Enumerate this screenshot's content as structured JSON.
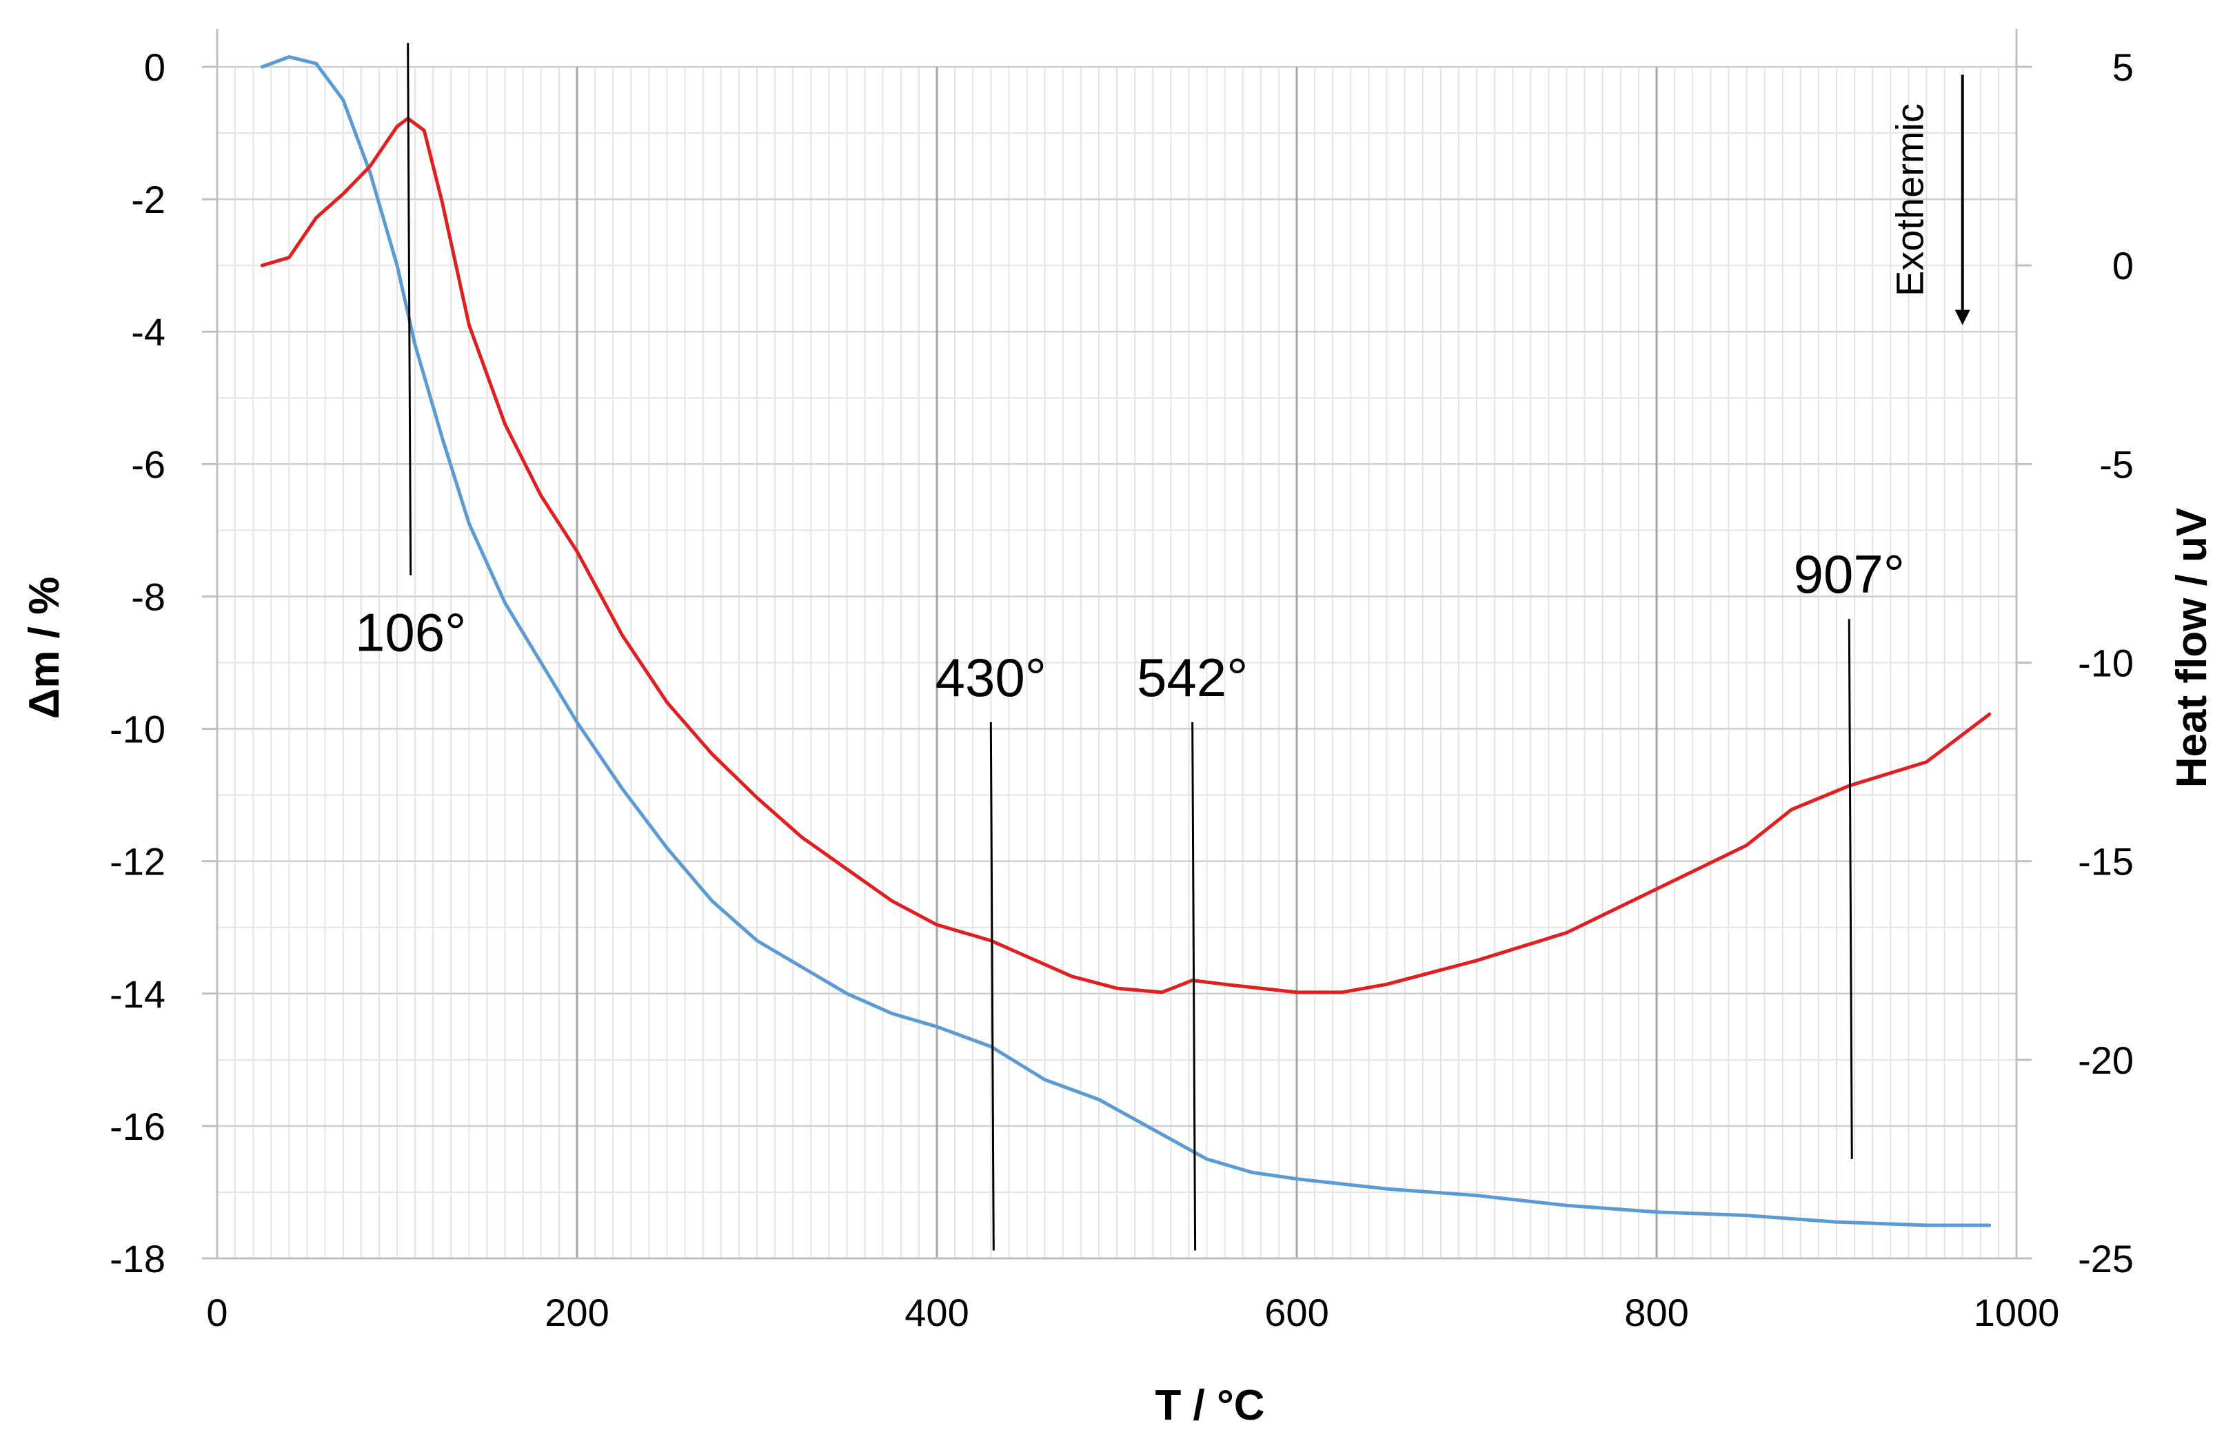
{
  "chart_data": {
    "type": "line",
    "xlabel": "T / °C",
    "ylabel_left": "Δm / %",
    "ylabel_right": "Heat flow / uV",
    "xlim": [
      0,
      1000
    ],
    "ylim_left": [
      -18,
      0
    ],
    "ylim_right": [
      -25,
      5
    ],
    "x_ticks": [
      0,
      200,
      400,
      600,
      800,
      1000
    ],
    "y_left_ticks": [
      0,
      -2,
      -4,
      -6,
      -8,
      -10,
      -12,
      -14,
      -16,
      -18
    ],
    "y_right_ticks": [
      5,
      0,
      -5,
      -10,
      -15,
      -20,
      -25
    ],
    "grid": true,
    "colors": {
      "mass": "#5b9bd5",
      "heat": "#e02020",
      "grid_major": "#a6a6a6",
      "grid_minor": "#e4e4e4",
      "annotation": "#000000"
    },
    "series": [
      {
        "axis": "left",
        "color": "#5b9bd5",
        "x": [
          25,
          40,
          55,
          70,
          85,
          100,
          110,
          125,
          140,
          160,
          180,
          200,
          225,
          250,
          275,
          300,
          325,
          350,
          375,
          400,
          430,
          460,
          490,
          510,
          530,
          550,
          575,
          600,
          650,
          700,
          750,
          800,
          850,
          900,
          950,
          985
        ],
        "y": [
          0,
          0.15,
          0.05,
          -0.5,
          -1.6,
          -3.0,
          -4.2,
          -5.6,
          -6.9,
          -8.1,
          -9.0,
          -9.9,
          -10.9,
          -11.8,
          -12.6,
          -13.2,
          -13.6,
          -14.0,
          -14.3,
          -14.5,
          -14.8,
          -15.3,
          -15.6,
          -15.9,
          -16.2,
          -16.5,
          -16.7,
          -16.8,
          -16.95,
          -17.05,
          -17.2,
          -17.3,
          -17.35,
          -17.45,
          -17.5,
          -17.5
        ]
      },
      {
        "axis": "right",
        "color": "#e02020",
        "x": [
          25,
          40,
          55,
          70,
          85,
          100,
          106,
          115,
          125,
          140,
          160,
          180,
          200,
          225,
          250,
          275,
          300,
          325,
          350,
          375,
          400,
          430,
          450,
          475,
          500,
          525,
          542,
          560,
          600,
          625,
          650,
          700,
          750,
          800,
          850,
          875,
          907,
          950,
          985
        ],
        "y": [
          0,
          0.2,
          1.2,
          1.8,
          2.5,
          3.5,
          3.7,
          3.4,
          1.6,
          -1.5,
          -4.0,
          -5.8,
          -7.2,
          -9.3,
          -11.0,
          -12.3,
          -13.4,
          -14.4,
          -15.2,
          -16.0,
          -16.6,
          -17.0,
          -17.4,
          -17.9,
          -18.2,
          -18.3,
          -18.0,
          -18.1,
          -18.3,
          -18.3,
          -18.1,
          -17.5,
          -16.8,
          -15.7,
          -14.6,
          -13.7,
          -13.1,
          -12.5,
          -11.3
        ]
      }
    ],
    "annotations": [
      {
        "label": "106°",
        "x": 106,
        "line_top_right": 5.6,
        "line_bottom_right": -7.8
      },
      {
        "label": "430°",
        "x": 430,
        "line_top_right": -11.5,
        "line_bottom_right": -24.8
      },
      {
        "label": "542°",
        "x": 542,
        "line_top_right": -11.5,
        "line_bottom_right": -24.8
      },
      {
        "label": "907°",
        "x": 907,
        "line_top_right": -8.9,
        "line_bottom_right": -22.5
      }
    ],
    "exothermic": {
      "label": "Exothermic",
      "x": 970,
      "from_right": 4.8,
      "to_right": -1.5
    }
  }
}
